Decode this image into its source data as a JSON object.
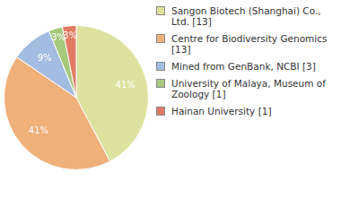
{
  "chart_data": {
    "type": "pie",
    "categories": [
      "Sangon Biotech (Shanghai) Co., Ltd. [13]",
      "Centre for Biodiversity Genomics [13]",
      "Mined from GenBank, NCBI [3]",
      "University of Malaya, Museum of Zoology [1]",
      "Hainan University [1]"
    ],
    "values": [
      41,
      41,
      9,
      3,
      3
    ],
    "value_labels": [
      "41%",
      "41%",
      "9%",
      "3%",
      "3%"
    ],
    "colors": [
      "#dde29e",
      "#f0b07a",
      "#a3bde0",
      "#a6c97d",
      "#e07c63"
    ],
    "data_labels": true,
    "legend": "right"
  }
}
